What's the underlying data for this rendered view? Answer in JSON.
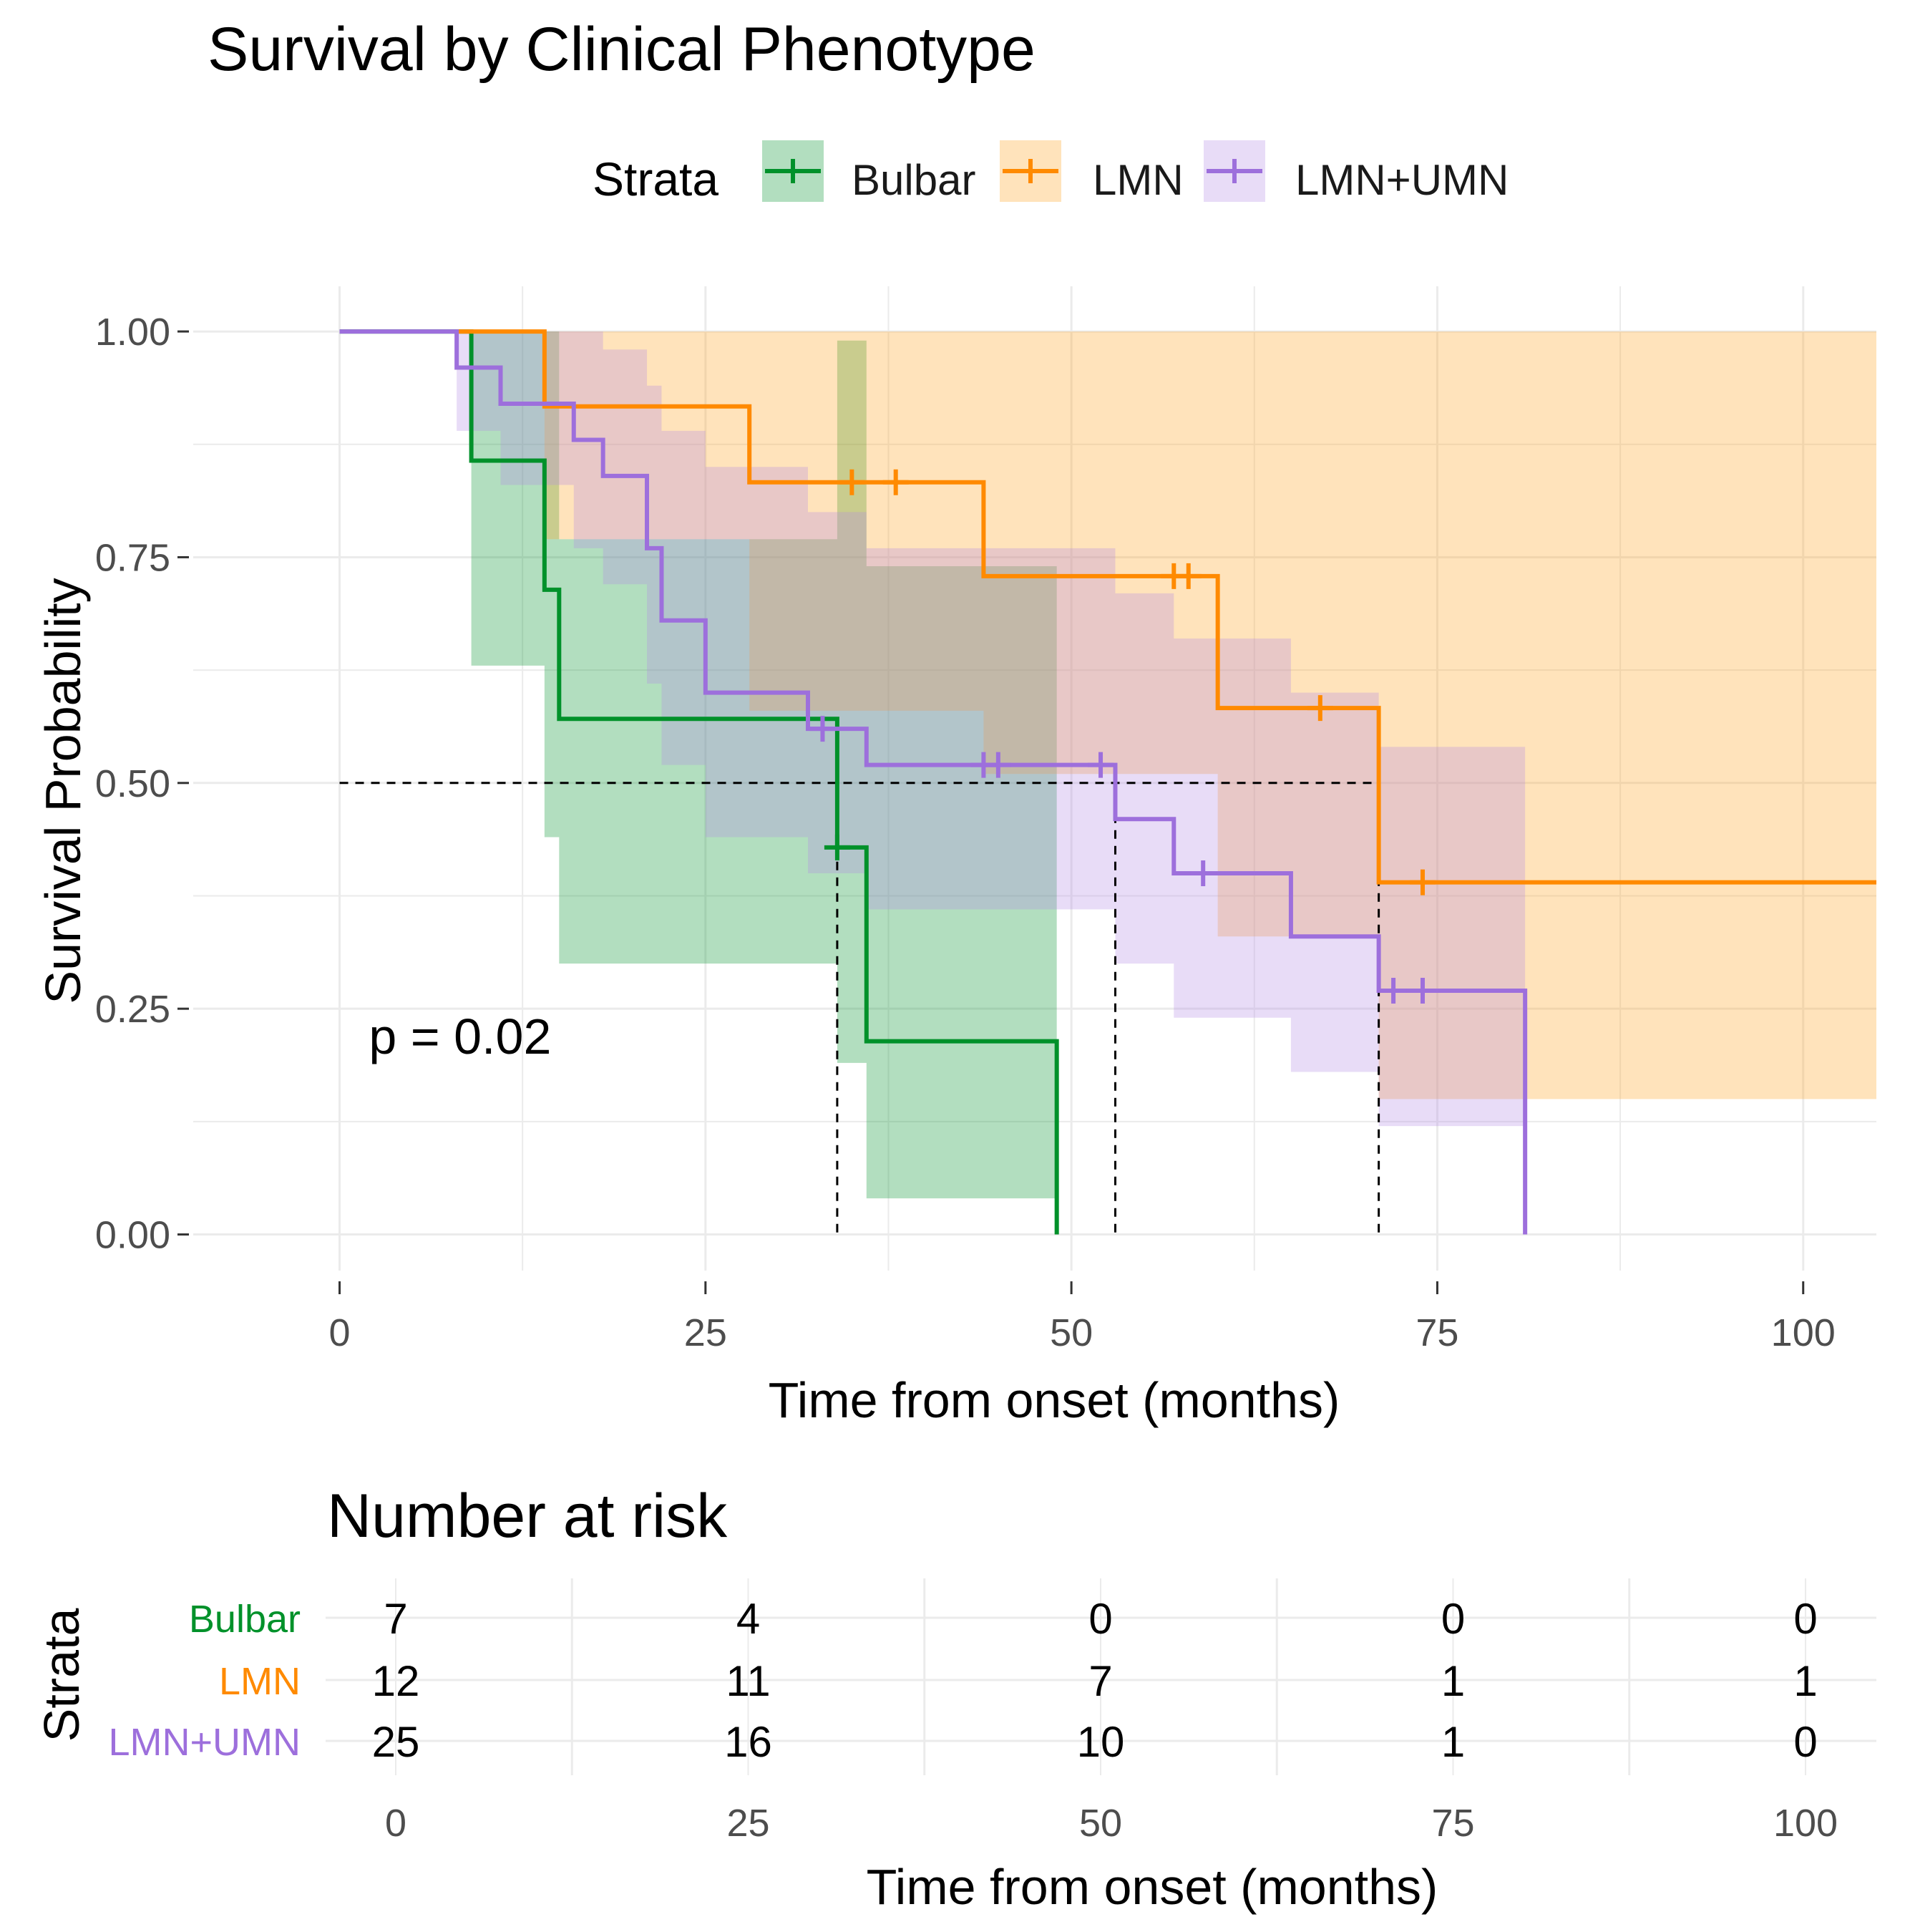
{
  "chart_data": {
    "type": "line",
    "subtype": "kaplan-meier",
    "title": "Survival by Clinical Phenotype",
    "xlabel": "Time from onset (months)",
    "ylabel": "Survival Probability",
    "xlim": [
      -10,
      105
    ],
    "ylim": [
      -0.04,
      1.05
    ],
    "xticks": [
      0,
      25,
      50,
      75,
      100
    ],
    "yticks": [
      0,
      0.25,
      0.5,
      0.75,
      1.0
    ],
    "ytick_labels": [
      "0.00",
      "0.25",
      "0.50",
      "0.75",
      "1.00"
    ],
    "xtick_labels": [
      "0",
      "25",
      "50",
      "75",
      "100"
    ],
    "legend": {
      "title": "Strata",
      "position": "top"
    },
    "grid": true,
    "pvalue_text": "p = 0.02",
    "pvalue_pos": {
      "x": 2,
      "y": 0.2
    },
    "median_line": {
      "y": 0.5,
      "x_end": 71,
      "drops": [
        34,
        53,
        71
      ]
    },
    "series": [
      {
        "name": "Bulbar",
        "color": "#00912a",
        "ci_color": "#00912a",
        "steps": [
          [
            0,
            1.0
          ],
          [
            9,
            0.857
          ],
          [
            14,
            0.714
          ],
          [
            15,
            0.571
          ],
          [
            34,
            0.4286
          ],
          [
            36,
            0.214
          ],
          [
            49,
            0.0
          ]
        ],
        "end_x": 49,
        "ci": [
          [
            9,
            0.63,
            1.0
          ],
          [
            14,
            0.44,
            1.0
          ],
          [
            15,
            0.3,
            0.77
          ],
          [
            34,
            0.19,
            0.99
          ],
          [
            36,
            0.04,
            0.74
          ]
        ],
        "ci_end": 49,
        "censors": [
          [
            34,
            0.4286
          ]
        ]
      },
      {
        "name": "LMN",
        "color": "#ff8a00",
        "ci_color": "#ffa31f",
        "steps": [
          [
            8,
            1.0
          ],
          [
            14,
            0.917
          ],
          [
            28,
            0.833
          ],
          [
            44,
            0.729
          ],
          [
            60,
            0.583
          ],
          [
            71,
            0.39
          ]
        ],
        "end_x": 105,
        "ci": [
          [
            8,
            1.0,
            1.0
          ],
          [
            14,
            0.77,
            1.0
          ],
          [
            28,
            0.58,
            1.0
          ],
          [
            44,
            0.51,
            1.0
          ],
          [
            60,
            0.33,
            1.0
          ],
          [
            71,
            0.15,
            1.0
          ]
        ],
        "ci_end": 105,
        "censors": [
          [
            35,
            0.833
          ],
          [
            38,
            0.833
          ],
          [
            57,
            0.729
          ],
          [
            58,
            0.729
          ],
          [
            67,
            0.583
          ],
          [
            74,
            0.39
          ]
        ]
      },
      {
        "name": "LMN+UMN",
        "color": "#9d6fdc",
        "ci_color": "#b48ce6",
        "steps": [
          [
            0,
            1.0
          ],
          [
            8,
            0.96
          ],
          [
            11,
            0.92
          ],
          [
            16,
            0.88
          ],
          [
            18,
            0.84
          ],
          [
            21,
            0.76
          ],
          [
            22,
            0.68
          ],
          [
            25,
            0.6
          ],
          [
            32,
            0.56
          ],
          [
            36,
            0.52
          ],
          [
            53,
            0.46
          ],
          [
            57,
            0.4
          ],
          [
            65,
            0.33
          ],
          [
            71,
            0.27
          ],
          [
            81,
            0.0
          ]
        ],
        "end_x": 81,
        "ci": [
          [
            8,
            0.89,
            1.0
          ],
          [
            11,
            0.83,
            1.0
          ],
          [
            16,
            0.76,
            1.0
          ],
          [
            18,
            0.72,
            0.98
          ],
          [
            21,
            0.61,
            0.94
          ],
          [
            22,
            0.52,
            0.89
          ],
          [
            25,
            0.44,
            0.85
          ],
          [
            32,
            0.4,
            0.8
          ],
          [
            36,
            0.36,
            0.76
          ],
          [
            53,
            0.3,
            0.71
          ],
          [
            57,
            0.24,
            0.66
          ],
          [
            65,
            0.18,
            0.6
          ],
          [
            71,
            0.12,
            0.54
          ]
        ],
        "ci_end": 81,
        "censors": [
          [
            33,
            0.56
          ],
          [
            44,
            0.52
          ],
          [
            45,
            0.52
          ],
          [
            52,
            0.52
          ],
          [
            59,
            0.4
          ],
          [
            72,
            0.27
          ],
          [
            74,
            0.27
          ]
        ]
      }
    ],
    "risk_table": {
      "title": "Number at risk",
      "ylabel": "Strata",
      "xlabel": "Time from onset (months)",
      "times": [
        0,
        25,
        50,
        75,
        100
      ],
      "time_labels": [
        "0",
        "25",
        "50",
        "75",
        "100"
      ],
      "rows": [
        {
          "name": "Bulbar",
          "color": "#00912a",
          "counts": [
            "7",
            "4",
            "0",
            "0",
            "0"
          ]
        },
        {
          "name": "LMN",
          "color": "#ff8a00",
          "counts": [
            "12",
            "11",
            "7",
            "1",
            "1"
          ]
        },
        {
          "name": "LMN+UMN",
          "color": "#9d6fdc",
          "counts": [
            "25",
            "16",
            "10",
            "1",
            "0"
          ]
        }
      ]
    }
  }
}
